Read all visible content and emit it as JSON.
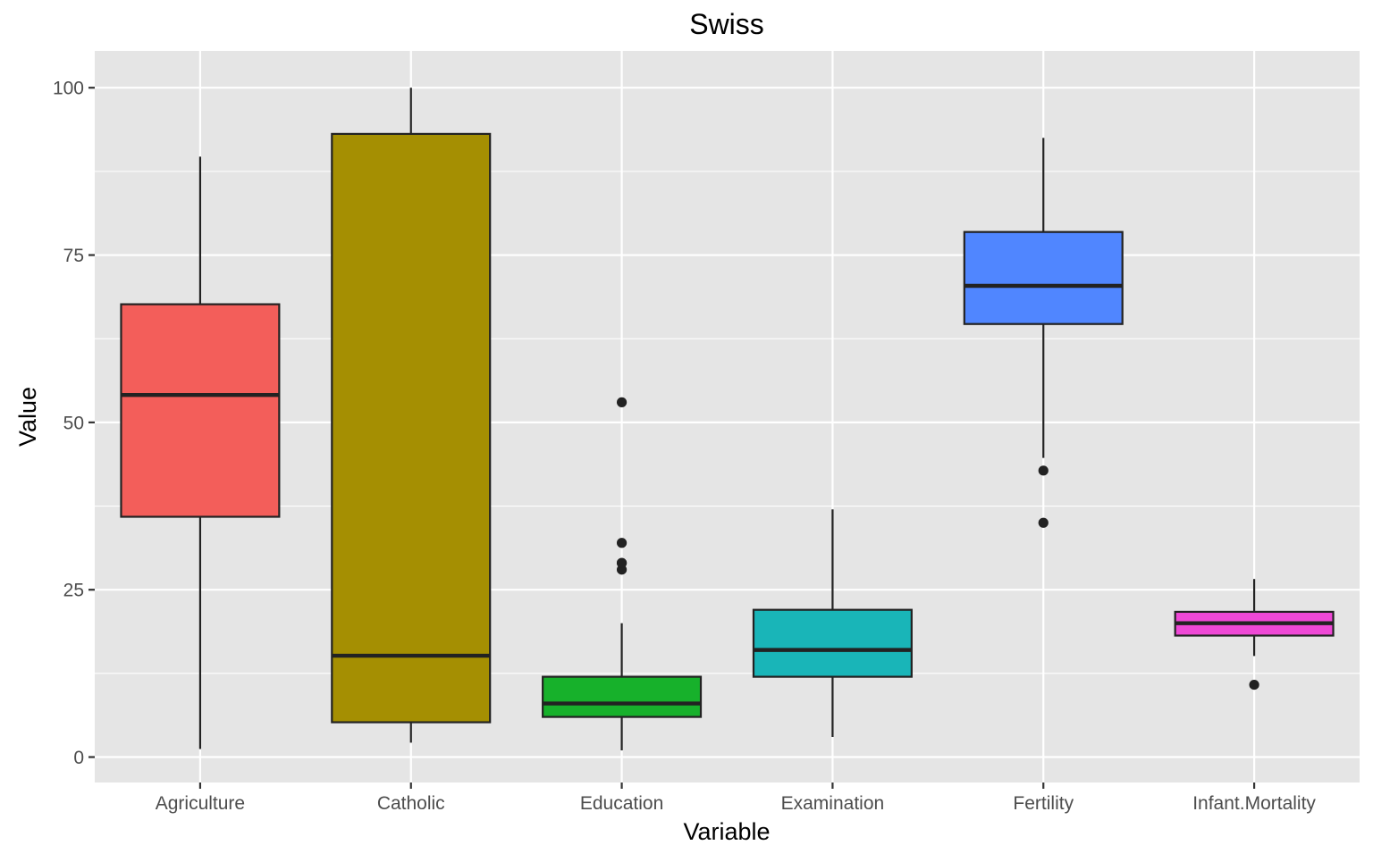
{
  "chart_data": {
    "type": "box",
    "title": "Swiss",
    "xlabel": "Variable",
    "ylabel": "Value",
    "ylim": [
      -3.8,
      105.5
    ],
    "yticks": [
      0,
      25,
      50,
      75,
      100
    ],
    "grid": true,
    "legend": "none",
    "categories": [
      "Agriculture",
      "Catholic",
      "Education",
      "Examination",
      "Fertility",
      "Infant.Mortality"
    ],
    "colors": {
      "panel_background": "#E5E5E5",
      "grid": "#FFFFFF",
      "box_outline": "#222222",
      "tick_text": "#4D4D4D"
    },
    "series": [
      {
        "category": "Agriculture",
        "fill": "#F35E5A",
        "whisker_low": 1.2,
        "q1": 35.9,
        "median": 54.1,
        "q3": 67.65,
        "whisker_high": 89.7,
        "outliers": []
      },
      {
        "category": "Catholic",
        "fill": "#A58F02",
        "whisker_low": 2.15,
        "q1": 5.2,
        "median": 15.14,
        "q3": 93.1,
        "whisker_high": 100,
        "outliers": []
      },
      {
        "category": "Education",
        "fill": "#17B12B",
        "whisker_low": 1,
        "q1": 6,
        "median": 8,
        "q3": 12,
        "whisker_high": 20,
        "outliers": [
          28,
          29,
          29,
          32,
          53
        ]
      },
      {
        "category": "Examination",
        "fill": "#19B5B8",
        "whisker_low": 3,
        "q1": 12,
        "median": 16,
        "q3": 22,
        "whisker_high": 37,
        "outliers": []
      },
      {
        "category": "Fertility",
        "fill": "#5086FF",
        "whisker_low": 44.7,
        "q1": 64.7,
        "median": 70.4,
        "q3": 78.45,
        "whisker_high": 92.5,
        "outliers": [
          35,
          42.8
        ]
      },
      {
        "category": "Infant.Mortality",
        "fill": "#EF48D6",
        "whisker_low": 15.1,
        "q1": 18.15,
        "median": 20,
        "q3": 21.7,
        "whisker_high": 26.6,
        "outliers": [
          10.8
        ]
      }
    ]
  }
}
